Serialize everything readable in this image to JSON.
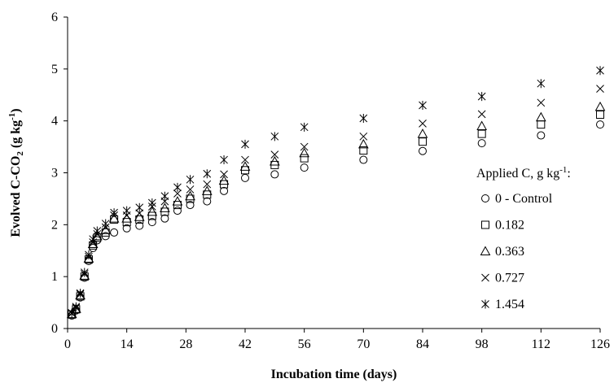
{
  "chart_data": {
    "type": "scatter",
    "title": "",
    "xlabel": "Incubation time (days)",
    "ylabel": "Evolved C-CO",
    "ylabel_sub": "2",
    "ylabel_unit_pre": " (g kg",
    "ylabel_unit_sup": "-1",
    "ylabel_unit_post": ")",
    "xlim": [
      0,
      126
    ],
    "ylim": [
      0,
      6
    ],
    "xticks": [
      0,
      14,
      28,
      42,
      56,
      70,
      84,
      98,
      112,
      126
    ],
    "yticks": [
      0,
      1,
      2,
      3,
      4,
      5,
      6
    ],
    "grid": false,
    "legend": {
      "title": "Applied C, g kg",
      "title_sup": "-1",
      "title_post": ":",
      "placement": "right"
    },
    "x": [
      1,
      2,
      3,
      4,
      5,
      6,
      7,
      9,
      11,
      14,
      17,
      20,
      23,
      26,
      29,
      33,
      37,
      42,
      49,
      56,
      70,
      84,
      98,
      112,
      126
    ],
    "series": [
      {
        "name": "0 - Control",
        "marker": "circle",
        "values": [
          0.25,
          0.35,
          0.6,
          0.98,
          1.3,
          1.55,
          1.7,
          1.78,
          1.85,
          1.93,
          1.98,
          2.05,
          2.12,
          2.27,
          2.38,
          2.45,
          2.65,
          2.9,
          2.97,
          3.1,
          3.25,
          3.42,
          3.57,
          3.72,
          3.93
        ]
      },
      {
        "name": "0.182",
        "marker": "square",
        "values": [
          0.27,
          0.37,
          0.62,
          1.0,
          1.33,
          1.6,
          1.75,
          1.85,
          2.1,
          2.05,
          2.1,
          2.17,
          2.25,
          2.38,
          2.5,
          2.58,
          2.78,
          3.05,
          3.15,
          3.28,
          3.43,
          3.6,
          3.75,
          3.93,
          4.12
        ]
      },
      {
        "name": "0.363",
        "marker": "triangle",
        "values": [
          0.28,
          0.38,
          0.64,
          1.02,
          1.35,
          1.63,
          1.78,
          1.9,
          2.12,
          2.12,
          2.15,
          2.25,
          2.32,
          2.45,
          2.55,
          2.65,
          2.85,
          3.12,
          3.22,
          3.38,
          3.55,
          3.75,
          3.9,
          4.07,
          4.27
        ]
      },
      {
        "name": "0.727",
        "marker": "x",
        "values": [
          0.29,
          0.4,
          0.66,
          1.05,
          1.38,
          1.66,
          1.82,
          1.95,
          2.18,
          2.18,
          2.22,
          2.35,
          2.45,
          2.6,
          2.68,
          2.78,
          2.97,
          3.25,
          3.35,
          3.5,
          3.7,
          3.95,
          4.13,
          4.35,
          4.62
        ]
      },
      {
        "name": "1.454",
        "marker": "asterisk",
        "values": [
          0.3,
          0.42,
          0.68,
          1.08,
          1.42,
          1.72,
          1.88,
          2.02,
          2.23,
          2.27,
          2.33,
          2.42,
          2.55,
          2.72,
          2.87,
          2.98,
          3.25,
          3.55,
          3.7,
          3.88,
          4.05,
          4.3,
          4.47,
          4.72,
          4.97
        ]
      }
    ]
  }
}
